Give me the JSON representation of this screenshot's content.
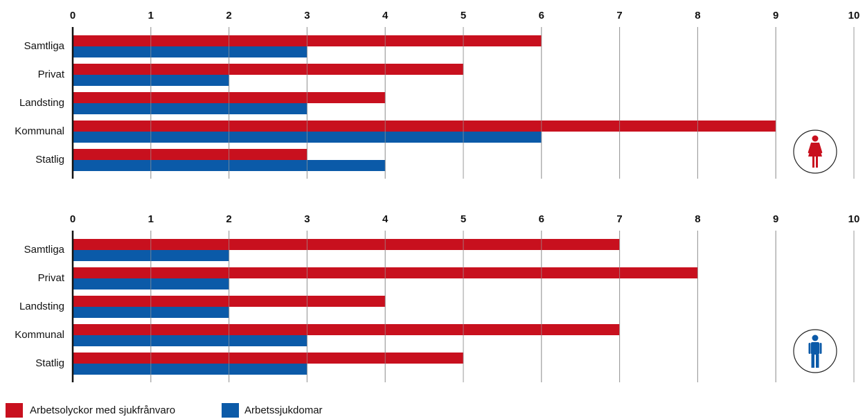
{
  "colors": {
    "series_red": "#c8101e",
    "series_blue": "#0b5aa8",
    "grid": "#9a9a9a",
    "axis": "#111111",
    "icon_female": "#c8101e",
    "icon_male": "#0b5aa8"
  },
  "legend": [
    {
      "label": "Arbetsolyckor med sjukfrånvaro",
      "color": "#c8101e"
    },
    {
      "label": "Arbetssjukdomar",
      "color": "#0b5aa8"
    }
  ],
  "chart_data": [
    {
      "type": "bar",
      "orientation": "horizontal",
      "group": "female",
      "icon": "female-icon",
      "categories": [
        "Samtliga",
        "Privat",
        "Landsting",
        "Kommunal",
        "Statlig"
      ],
      "xticks": [
        "0",
        "1",
        "2",
        "3",
        "4",
        "5",
        "6",
        "7",
        "8",
        "9",
        "10"
      ],
      "xlim": [
        0,
        10
      ],
      "grid": true,
      "series": [
        {
          "name": "Arbetsolyckor med sjukfrånvaro",
          "values": [
            6,
            5,
            4,
            9,
            3
          ]
        },
        {
          "name": "Arbetssjukdomar",
          "values": [
            3,
            2,
            3,
            6,
            4
          ]
        }
      ]
    },
    {
      "type": "bar",
      "orientation": "horizontal",
      "group": "male",
      "icon": "male-icon",
      "categories": [
        "Samtliga",
        "Privat",
        "Landsting",
        "Kommunal",
        "Statlig"
      ],
      "xticks": [
        "0",
        "1",
        "2",
        "3",
        "4",
        "5",
        "6",
        "7",
        "8",
        "9",
        "10"
      ],
      "xlim": [
        0,
        10
      ],
      "grid": true,
      "series": [
        {
          "name": "Arbetsolyckor med sjukfrånvaro",
          "values": [
            7,
            8,
            4,
            7,
            5
          ]
        },
        {
          "name": "Arbetssjukdomar",
          "values": [
            2,
            2,
            2,
            3,
            3
          ]
        }
      ]
    }
  ]
}
